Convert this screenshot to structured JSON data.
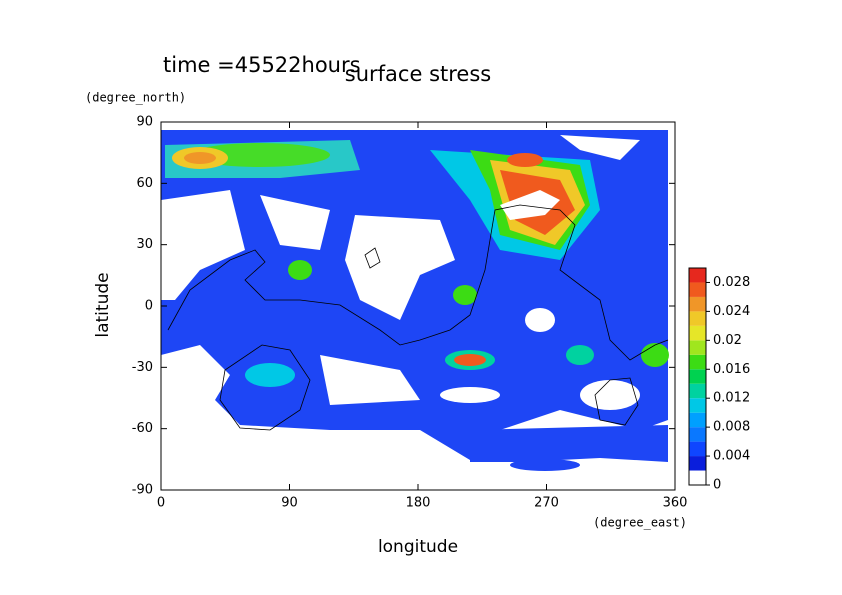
{
  "chart_data": {
    "type": "contour",
    "title": "surface stress",
    "subtitle": "time =45522hours",
    "x_label": "longitude",
    "y_label": "latitude",
    "x_unit": "(degree_east)",
    "y_unit": "(degree_north)",
    "xlim": [
      0,
      360
    ],
    "ylim": [
      -90,
      90
    ],
    "xticks": [
      0,
      90,
      180,
      270,
      360
    ],
    "yticks": [
      -90,
      -60,
      -30,
      0,
      30,
      60,
      90
    ],
    "colorbar": {
      "lim": [
        0,
        0.03
      ],
      "levels": [
        0,
        0.002,
        0.004,
        0.006,
        0.008,
        0.01,
        0.012,
        0.014,
        0.016,
        0.018,
        0.02,
        0.022,
        0.024,
        0.026,
        0.028,
        0.03
      ],
      "colors": [
        "#ffffff",
        "#0a1edc",
        "#0f46ff",
        "#0a78ff",
        "#00a0ff",
        "#00c8e6",
        "#00d2a0",
        "#00d250",
        "#3cdc14",
        "#a0e61e",
        "#e6e628",
        "#f0c828",
        "#f09628",
        "#f05a1e",
        "#e6281e"
      ],
      "ticks": [
        0,
        0.004,
        0.008,
        0.012,
        0.016,
        0.02,
        0.024,
        0.028
      ]
    }
  }
}
